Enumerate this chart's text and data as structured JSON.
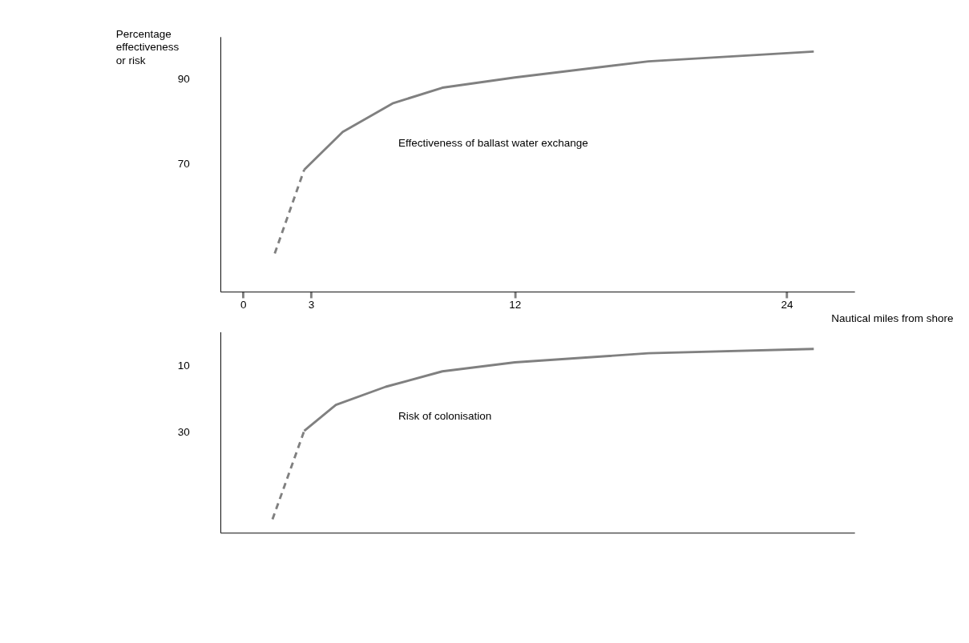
{
  "chart_data": [
    {
      "type": "line",
      "ylabel": "Percentage\neffectiveness\nor risk",
      "xlabel": "Nautical miles from shore",
      "xlim": [
        -1,
        27
      ],
      "xticks": [
        0,
        3,
        12,
        24
      ],
      "ylim": [
        40,
        100
      ],
      "yticks": [
        70,
        90
      ],
      "grid": false,
      "legend": false,
      "series": [
        {
          "color": "#808080",
          "line_style": "dashed",
          "x": [
            1.4,
            2.7
          ],
          "values": [
            49,
            68.7
          ]
        },
        {
          "color": "#808080",
          "line_style": "solid",
          "x": [
            2.7,
            4.4,
            6.6,
            8.8,
            12,
            17.9,
            25.2
          ],
          "values": [
            68.7,
            77.6,
            84.3,
            88,
            90.4,
            94.2,
            96.5
          ]
        }
      ],
      "annotations": [
        "Effectiveness of ballast water exchange"
      ]
    },
    {
      "type": "line",
      "xlim": [
        -1,
        27
      ],
      "ylim": [
        60,
        0
      ],
      "yticks": [
        10,
        30
      ],
      "grid": false,
      "legend": false,
      "tick_labels": "y",
      "series": [
        {
          "color": "#808080",
          "line_style": "dashed",
          "x": [
            1.3,
            2.7
          ],
          "values": [
            56,
            29.6
          ]
        },
        {
          "color": "#808080",
          "line_style": "solid",
          "x": [
            2.7,
            4.1,
            6.3,
            8.8,
            12,
            17.9,
            25.2
          ],
          "values": [
            29.6,
            21.8,
            16.4,
            11.8,
            9.1,
            6.4,
            5.1
          ]
        }
      ],
      "annotations": [
        "Risk of colonisation"
      ]
    }
  ]
}
